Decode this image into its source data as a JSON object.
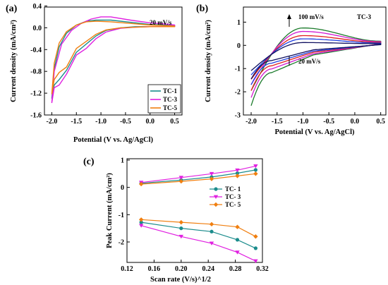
{
  "chart_data": [
    {
      "panel": "(a)",
      "type": "line",
      "xlabel": "Potential (V vs. Ag/AgCl)",
      "ylabel": "Current density (mA/cm²)",
      "xlim": [
        -2.15,
        0.65
      ],
      "ylim": [
        -1.6,
        0.38
      ],
      "xticks": [
        -2.0,
        -1.5,
        -1.0,
        -0.5,
        0.0,
        0.5
      ],
      "yticks": [
        -1.6,
        -1.2,
        -0.8,
        -0.4,
        0.0,
        0.4
      ],
      "annotations": [
        "20 mV/s"
      ],
      "legend_position": "bottom-right",
      "series": [
        {
          "name": "TC-1",
          "color": "#1b8c8c",
          "x": [
            -2.0,
            -1.95,
            -1.85,
            -1.7,
            -1.5,
            -1.3,
            -1.1,
            -0.9,
            -0.6,
            -0.3,
            0.0,
            0.3,
            0.5,
            0.5,
            0.3,
            0.0,
            -0.4,
            -0.8,
            -1.1,
            -1.3,
            -1.5,
            -1.7,
            -1.85,
            -1.95,
            -2.0
          ],
          "y": [
            -1.3,
            -1.05,
            -0.95,
            -0.78,
            -0.45,
            -0.3,
            -0.15,
            -0.05,
            0.0,
            0.02,
            0.02,
            0.02,
            0.02,
            0.04,
            0.05,
            0.06,
            0.1,
            0.14,
            0.14,
            0.12,
            0.05,
            -0.1,
            -0.35,
            -0.75,
            -1.3
          ]
        },
        {
          "name": "TC-3",
          "color": "#e020e0",
          "x": [
            -2.0,
            -1.95,
            -1.85,
            -1.7,
            -1.5,
            -1.3,
            -1.1,
            -0.9,
            -0.6,
            -0.3,
            0.0,
            0.3,
            0.5,
            0.5,
            0.3,
            0.0,
            -0.4,
            -0.8,
            -1.0,
            -1.2,
            -1.4,
            -1.6,
            -1.8,
            -1.95,
            -2.0
          ],
          "y": [
            -1.38,
            -1.1,
            -1.05,
            -0.85,
            -0.5,
            -0.38,
            -0.2,
            -0.08,
            -0.01,
            0.01,
            0.02,
            0.02,
            0.03,
            0.05,
            0.07,
            0.09,
            0.14,
            0.2,
            0.2,
            0.16,
            0.08,
            -0.05,
            -0.3,
            -0.8,
            -1.38
          ]
        },
        {
          "name": "TC-5",
          "color": "#f07f10",
          "x": [
            -2.0,
            -1.95,
            -1.85,
            -1.7,
            -1.5,
            -1.3,
            -1.1,
            -0.9,
            -0.6,
            -0.3,
            0.0,
            0.3,
            0.5,
            0.5,
            0.3,
            0.0,
            -0.4,
            -0.8,
            -1.1,
            -1.3,
            -1.5,
            -1.7,
            -1.85,
            -1.95,
            -2.0
          ],
          "y": [
            -1.22,
            -0.95,
            -0.82,
            -0.72,
            -0.38,
            -0.25,
            -0.12,
            -0.04,
            0.0,
            0.01,
            0.02,
            0.02,
            0.02,
            0.03,
            0.04,
            0.05,
            0.08,
            0.11,
            0.12,
            0.11,
            0.05,
            -0.07,
            -0.28,
            -0.65,
            -1.22
          ]
        }
      ]
    },
    {
      "panel": "(b)",
      "type": "line",
      "xlabel": "Potential (V vs. Ag/AgCl)",
      "ylabel": "Current density (mA/cm²)",
      "xlim": [
        -2.15,
        0.6
      ],
      "ylim": [
        -3.0,
        1.65
      ],
      "xticks": [
        -2.0,
        -1.5,
        -1.0,
        -0.5,
        0.0,
        0.5
      ],
      "yticks": [
        -3,
        -2,
        -1,
        0,
        1
      ],
      "annotations": [
        "100 mV/s",
        "20 mV/s",
        "TC-3"
      ],
      "series": [
        {
          "color": "#1a7a2a",
          "peak": 0.75,
          "low": -2.6,
          "tail": 0.18
        },
        {
          "color": "#d018d0",
          "peak": 0.6,
          "low": -2.25,
          "tail": 0.16
        },
        {
          "color": "#e02020",
          "peak": 0.42,
          "low": -1.95,
          "tail": 0.13
        },
        {
          "color": "#2040e0",
          "peak": 0.28,
          "low": -1.7,
          "tail": 0.1
        },
        {
          "color": "#101060",
          "peak": 0.12,
          "low": -1.45,
          "tail": 0.07
        }
      ]
    },
    {
      "panel": "(c)",
      "type": "line",
      "xlabel": "Scan rate (V/s)^1/2",
      "ylabel": "Peak Current (mA/cm²)",
      "xlim": [
        0.12,
        0.32
      ],
      "ylim": [
        -2.75,
        1.05
      ],
      "xticks": [
        0.12,
        0.16,
        0.2,
        0.24,
        0.28,
        0.32
      ],
      "yticks": [
        -2,
        -1,
        0,
        1
      ],
      "legend_position": "right",
      "x": [
        0.141,
        0.2,
        0.245,
        0.283,
        0.31
      ],
      "series": [
        {
          "name": "TC- 1",
          "color": "#1b8c8c",
          "marker": "circle",
          "values": [
            0.15,
            0.27,
            0.38,
            0.52,
            0.64
          ]
        },
        {
          "name": "TC- 3",
          "color": "#e020e0",
          "marker": "triangle-down",
          "values": [
            0.18,
            0.36,
            0.5,
            0.63,
            0.78
          ]
        },
        {
          "name": "TC- 5",
          "color": "#f07f10",
          "marker": "diamond",
          "values": [
            0.12,
            0.22,
            0.31,
            0.42,
            0.5
          ]
        },
        {
          "name": "TC- 1",
          "color": "#1b8c8c",
          "marker": "circle",
          "values": [
            -1.28,
            -1.5,
            -1.62,
            -1.92,
            -2.23
          ],
          "legend": false
        },
        {
          "name": "TC- 3",
          "color": "#e020e0",
          "marker": "triangle-down",
          "values": [
            -1.4,
            -1.8,
            -2.05,
            -2.38,
            -2.7
          ],
          "legend": false
        },
        {
          "name": "TC- 5",
          "color": "#f07f10",
          "marker": "diamond",
          "values": [
            -1.18,
            -1.28,
            -1.35,
            -1.45,
            -1.8
          ],
          "legend": false
        }
      ]
    }
  ]
}
